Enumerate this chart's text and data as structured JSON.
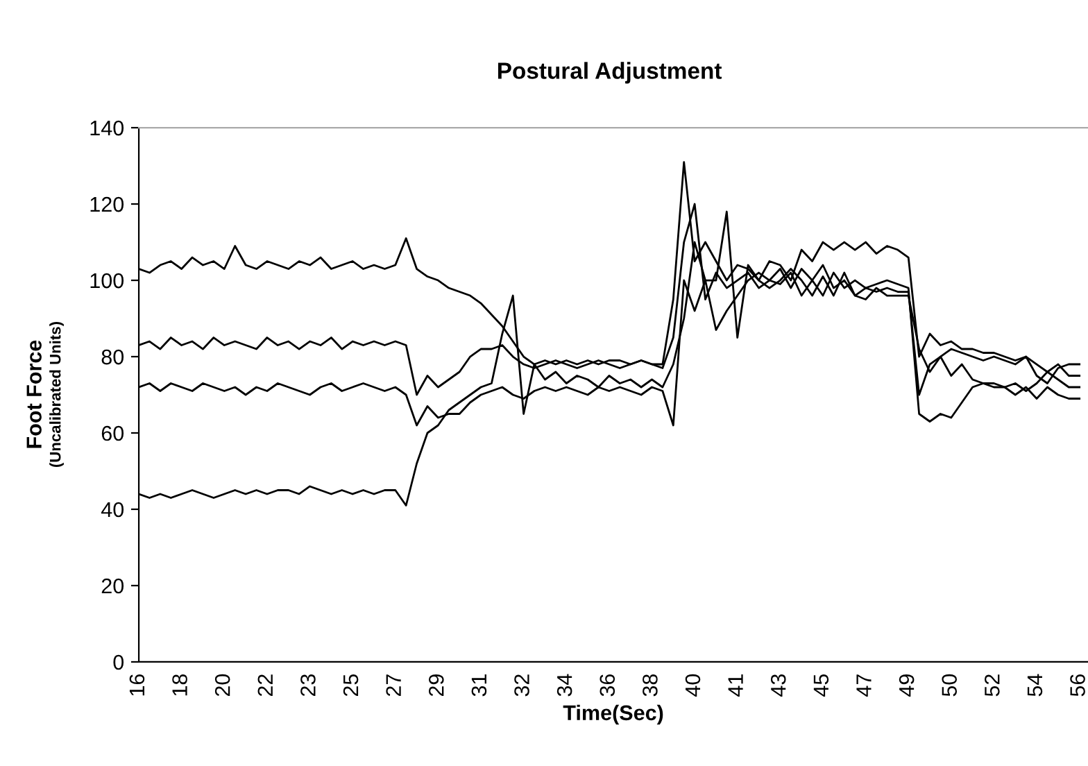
{
  "chart_data": {
    "type": "line",
    "title": "Postural Adjustment",
    "xlabel": "Time(Sec)",
    "ylabel": "Foot Force\n(Uncalibrated Units)",
    "categories": [
      "16",
      null,
      null,
      null,
      "18",
      null,
      null,
      null,
      "20",
      null,
      null,
      null,
      "22",
      null,
      null,
      null,
      "23",
      null,
      null,
      null,
      "25",
      null,
      null,
      null,
      "27",
      null,
      null,
      null,
      "29",
      null,
      null,
      null,
      "31",
      null,
      null,
      null,
      "32",
      null,
      null,
      null,
      "34",
      null,
      null,
      null,
      "36",
      null,
      null,
      null,
      "38",
      null,
      null,
      null,
      "40",
      null,
      null,
      null,
      "41",
      null,
      null,
      null,
      "43",
      null,
      null,
      null,
      "45",
      null,
      null,
      null,
      "47",
      null,
      null,
      null,
      "49",
      null,
      null,
      null,
      "50",
      null,
      null,
      null,
      "52",
      null,
      null,
      null,
      "54",
      null,
      null,
      null,
      "56"
    ],
    "series": [
      {
        "color": "#000000",
        "values": [
          103,
          102,
          104,
          105,
          103,
          106,
          104,
          105,
          103,
          109,
          104,
          103,
          105,
          104,
          103,
          105,
          104,
          106,
          103,
          104,
          105,
          103,
          104,
          103,
          104,
          111,
          103,
          101,
          100,
          98,
          97,
          96,
          94,
          91,
          88,
          84,
          80,
          78,
          79,
          78,
          79,
          78,
          79,
          78,
          79,
          79,
          78,
          79,
          78,
          78,
          95,
          131,
          105,
          110,
          105,
          100,
          104,
          103,
          100,
          105,
          104,
          100,
          108,
          105,
          110,
          108,
          110,
          108,
          110,
          107,
          109,
          108,
          106,
          80,
          86,
          83,
          84,
          82,
          82,
          81,
          81,
          80,
          79,
          80,
          78,
          76,
          78,
          75,
          75
        ]
      },
      {
        "color": "#000000",
        "values": [
          83,
          84,
          82,
          85,
          83,
          84,
          82,
          85,
          83,
          84,
          83,
          82,
          85,
          83,
          84,
          82,
          84,
          83,
          85,
          82,
          84,
          83,
          84,
          83,
          84,
          83,
          70,
          75,
          72,
          74,
          76,
          80,
          82,
          82,
          83,
          80,
          78,
          77,
          78,
          79,
          78,
          77,
          78,
          79,
          78,
          77,
          78,
          79,
          78,
          77,
          85,
          110,
          120,
          95,
          102,
          98,
          100,
          102,
          98,
          100,
          103,
          98,
          103,
          100,
          104,
          98,
          100,
          96,
          98,
          97,
          98,
          97,
          97,
          70,
          78,
          80,
          75,
          78,
          74,
          73,
          73,
          72,
          73,
          71,
          73,
          76,
          74,
          72,
          72
        ]
      },
      {
        "color": "#000000",
        "values": [
          72,
          73,
          71,
          73,
          72,
          71,
          73,
          72,
          71,
          72,
          70,
          72,
          71,
          73,
          72,
          71,
          70,
          72,
          73,
          71,
          72,
          73,
          72,
          71,
          72,
          70,
          62,
          67,
          64,
          65,
          65,
          68,
          70,
          71,
          72,
          70,
          69,
          71,
          72,
          71,
          72,
          71,
          70,
          72,
          71,
          72,
          71,
          70,
          72,
          71,
          62,
          100,
          92,
          100,
          87,
          92,
          96,
          100,
          102,
          100,
          99,
          102,
          96,
          100,
          96,
          102,
          98,
          100,
          98,
          99,
          100,
          99,
          98,
          65,
          63,
          65,
          64,
          68,
          72,
          73,
          72,
          72,
          70,
          72,
          69,
          72,
          70,
          69,
          69
        ]
      },
      {
        "color": "#000000",
        "values": [
          44,
          43,
          44,
          43,
          44,
          45,
          44,
          43,
          44,
          45,
          44,
          45,
          44,
          45,
          45,
          44,
          46,
          45,
          44,
          45,
          44,
          45,
          44,
          45,
          45,
          41,
          52,
          60,
          62,
          66,
          68,
          70,
          72,
          73,
          86,
          96,
          65,
          78,
          74,
          76,
          73,
          75,
          74,
          72,
          75,
          73,
          74,
          72,
          74,
          72,
          78,
          90,
          110,
          100,
          100,
          118,
          85,
          104,
          100,
          98,
          100,
          103,
          100,
          96,
          101,
          96,
          102,
          96,
          95,
          98,
          96,
          96,
          96,
          82,
          76,
          80,
          82,
          81,
          80,
          79,
          80,
          79,
          78,
          80,
          75,
          73,
          77,
          78,
          78
        ]
      }
    ],
    "ylim": [
      0,
      140
    ],
    "yticks": [
      0,
      20,
      40,
      60,
      80,
      100,
      120,
      140
    ],
    "marker": "none",
    "line_style": "solid"
  }
}
